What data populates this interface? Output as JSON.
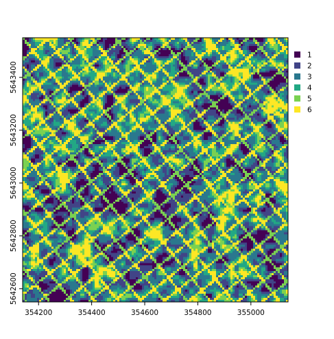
{
  "chart_data": {
    "type": "heatmap",
    "title": "",
    "xlabel": "",
    "ylabel": "",
    "x_ticks": [
      "354200",
      "354400",
      "354600",
      "354800",
      "355000"
    ],
    "x_tick_values": [
      354200,
      354400,
      354600,
      354800,
      355000
    ],
    "y_ticks": [
      "5642600",
      "5642800",
      "5643000",
      "5643200",
      "5643400"
    ],
    "y_tick_values": [
      5642600,
      5642800,
      5643000,
      5643200,
      5643400
    ],
    "xlim": [
      354140,
      355140
    ],
    "ylim": [
      5642550,
      5643550
    ],
    "grid": false,
    "legend_position": "right",
    "classes": [
      {
        "label": "1",
        "color": "#440154"
      },
      {
        "label": "2",
        "color": "#414487"
      },
      {
        "label": "3",
        "color": "#2a788e"
      },
      {
        "label": "4",
        "color": "#22a884"
      },
      {
        "label": "5",
        "color": "#7ad151"
      },
      {
        "label": "6",
        "color": "#fde725"
      }
    ]
  }
}
